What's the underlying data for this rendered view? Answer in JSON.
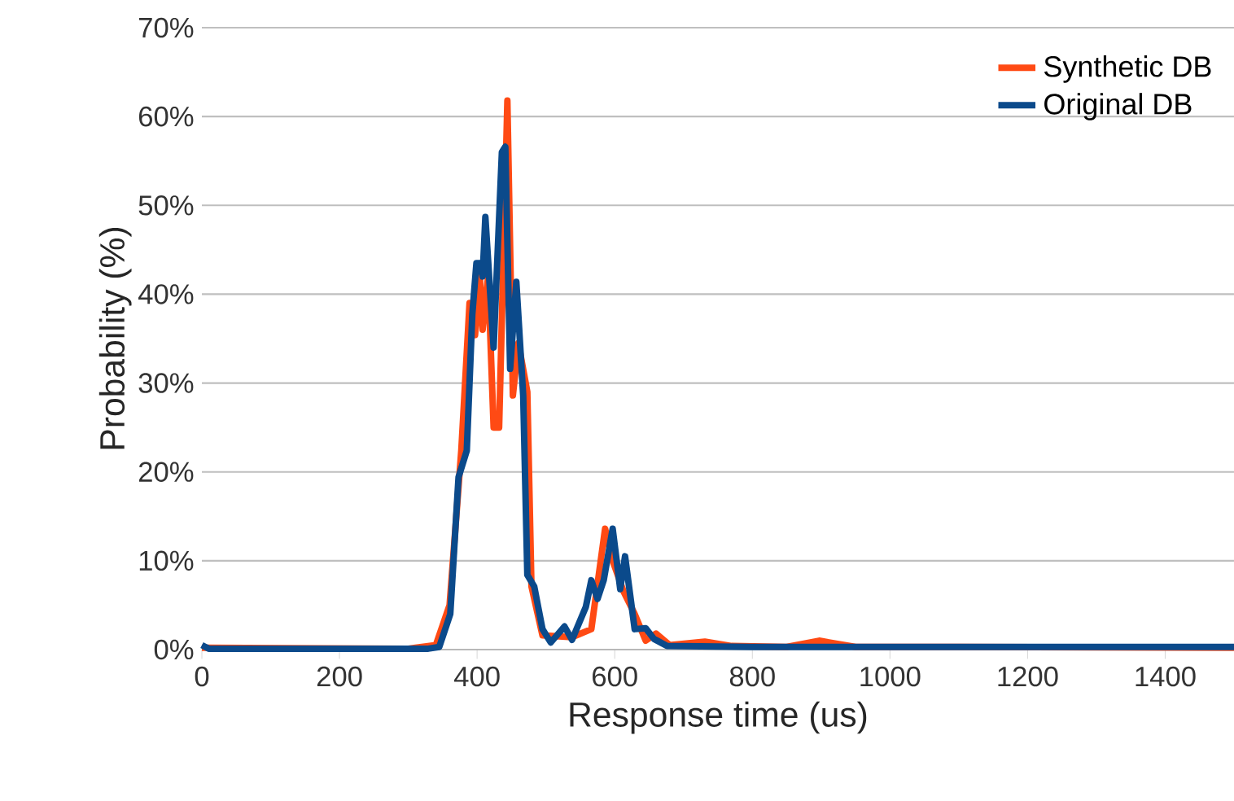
{
  "chart_data": {
    "type": "line",
    "xlabel": "Response time (us)",
    "ylabel": "Probability (%)",
    "xlim": [
      0,
      1500
    ],
    "xticks": [
      0,
      200,
      400,
      600,
      800,
      1000,
      1200,
      1400
    ],
    "ylim": [
      0,
      70
    ],
    "yticks": [
      {
        "value": 0,
        "label": "0%"
      },
      {
        "value": 10,
        "label": "10%"
      },
      {
        "value": 20,
        "label": "20%"
      },
      {
        "value": 30,
        "label": "30%"
      },
      {
        "value": 40,
        "label": "40%"
      },
      {
        "value": 50,
        "label": "50%"
      },
      {
        "value": 60,
        "label": "60%"
      },
      {
        "value": 70,
        "label": "70%"
      }
    ],
    "grid": "y",
    "legend": "top right",
    "marker": "none",
    "line_style": "solid",
    "series": [
      {
        "name": "Synthetic DB",
        "color": "#ff4a14",
        "x": [
          0,
          100,
          200,
          300,
          340,
          360,
          377,
          389,
          397,
          404,
          408,
          416,
          424,
          432,
          444,
          452,
          460,
          473,
          479,
          495,
          538,
          566,
          586,
          597,
          613,
          629,
          645,
          660,
          680,
          731,
          770,
          850,
          897,
          950,
          1100,
          1300,
          1500
        ],
        "values": [
          0.2,
          null,
          null,
          0.1,
          0.5,
          5,
          22.4,
          39,
          35.4,
          42,
          36,
          42,
          25,
          25,
          61.8,
          28.6,
          34.5,
          29,
          7.1,
          1.6,
          1.4,
          2.3,
          13.6,
          10,
          6.5,
          4,
          1,
          1.8,
          0.5,
          0.9,
          0.4,
          0.3,
          1.0,
          0.3,
          0.3,
          null,
          0.2
        ]
      },
      {
        "name": "Original DB",
        "color": "#0b4a8b",
        "x": [
          0,
          10,
          100,
          200,
          300,
          329,
          345,
          361,
          373,
          385,
          393,
          399,
          404,
          408,
          412,
          424,
          436,
          441,
          448,
          457,
          467,
          473,
          483,
          495,
          507,
          527,
          538,
          558,
          566,
          575,
          584,
          597,
          608,
          615,
          629,
          645,
          657,
          676,
          800,
          1000,
          1200,
          1500
        ],
        "values": [
          0.5,
          0.1,
          0.1,
          0.1,
          0.1,
          0.1,
          0.3,
          4,
          19.4,
          22.4,
          37.7,
          43.5,
          43.5,
          42,
          48.7,
          34,
          56,
          56.6,
          31.6,
          41.4,
          28.6,
          8.4,
          7.1,
          2.3,
          0.8,
          2.6,
          1.1,
          4.8,
          7.8,
          5.7,
          7.8,
          13.6,
          6.8,
          10.5,
          2.3,
          2.4,
          1.2,
          0.4,
          0.3,
          0.3,
          0.3,
          0.3
        ]
      }
    ]
  }
}
